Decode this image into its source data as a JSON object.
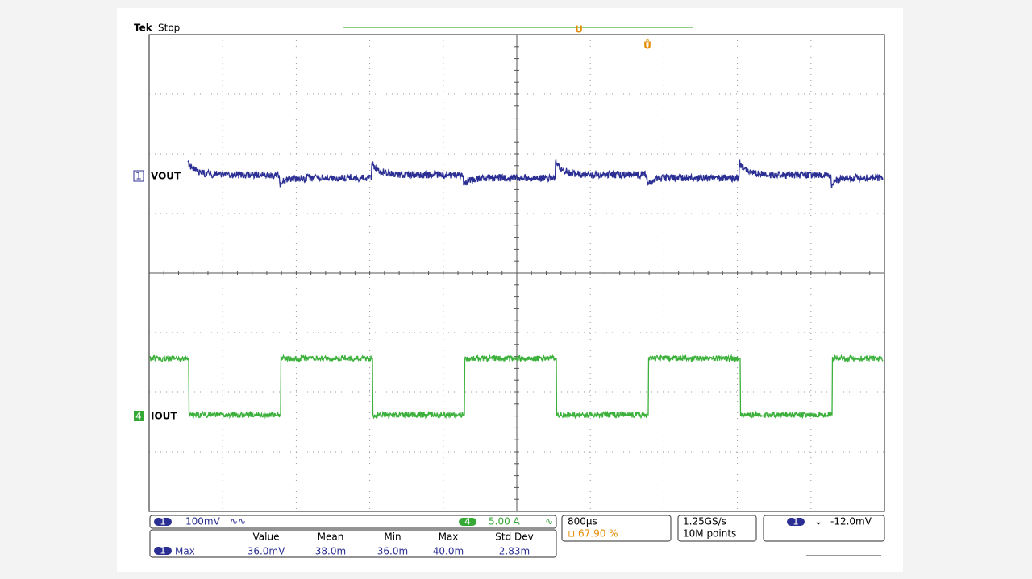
{
  "header": {
    "brand": "Tek",
    "status": "Stop"
  },
  "channels": [
    {
      "number": "1",
      "label": "VOUT"
    },
    {
      "number": "4",
      "label": "IOUT"
    }
  ],
  "status_bar": {
    "ch1_scale": "100mV",
    "ch4_scale": "5.00 A",
    "timebase": "800µs",
    "trigger_position": "67.90 %",
    "sample_rate": "1.25GS/s",
    "record_length": "10M points",
    "trigger_level": "-12.0mV"
  },
  "measurements": {
    "columns": [
      "Value",
      "Mean",
      "Min",
      "Max",
      "Std Dev"
    ],
    "rows": [
      {
        "name": "Max",
        "values": [
          "36.0mV",
          "38.0m",
          "36.0m",
          "40.0m",
          "2.83m"
        ]
      }
    ]
  }
}
